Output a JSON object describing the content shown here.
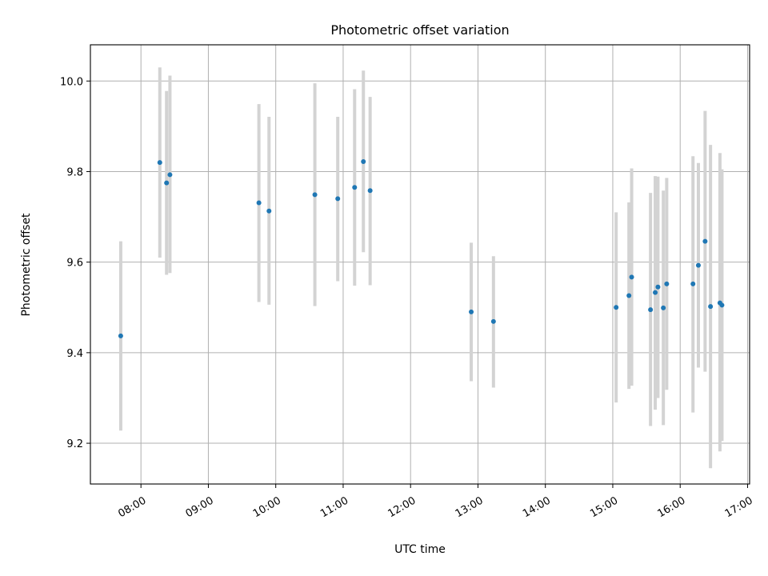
{
  "chart_data": {
    "type": "scatter",
    "title": "Photometric offset variation",
    "xlabel": "UTC time",
    "ylabel": "Photometric offset",
    "xlim_hours": [
      7.25,
      17.03
    ],
    "ylim": [
      9.11,
      10.08
    ],
    "grid": true,
    "x_ticks": [
      {
        "hour": 8,
        "label": "08:00"
      },
      {
        "hour": 9,
        "label": "09:00"
      },
      {
        "hour": 10,
        "label": "10:00"
      },
      {
        "hour": 11,
        "label": "11:00"
      },
      {
        "hour": 12,
        "label": "12:00"
      },
      {
        "hour": 13,
        "label": "13:00"
      },
      {
        "hour": 14,
        "label": "14:00"
      },
      {
        "hour": 15,
        "label": "15:00"
      },
      {
        "hour": 16,
        "label": "16:00"
      },
      {
        "hour": 17,
        "label": "17:00"
      }
    ],
    "y_ticks": [
      {
        "value": 9.2,
        "label": "9.2"
      },
      {
        "value": 9.4,
        "label": "9.4"
      },
      {
        "value": 9.6,
        "label": "9.6"
      },
      {
        "value": 9.8,
        "label": "9.8"
      },
      {
        "value": 10.0,
        "label": "10.0"
      }
    ],
    "point_color": "#1f77b4",
    "errorbar_color": "#d3d3d3",
    "points": [
      {
        "hour": 7.7,
        "y": 9.437,
        "low": 9.228,
        "high": 9.646
      },
      {
        "hour": 8.28,
        "y": 9.82,
        "low": 9.61,
        "high": 10.03
      },
      {
        "hour": 8.38,
        "y": 9.775,
        "low": 9.572,
        "high": 9.978
      },
      {
        "hour": 8.43,
        "y": 9.793,
        "low": 9.576,
        "high": 10.012
      },
      {
        "hour": 9.75,
        "y": 9.731,
        "low": 9.512,
        "high": 9.949
      },
      {
        "hour": 9.9,
        "y": 9.713,
        "low": 9.506,
        "high": 9.921
      },
      {
        "hour": 10.58,
        "y": 9.749,
        "low": 9.503,
        "high": 9.995
      },
      {
        "hour": 10.92,
        "y": 9.74,
        "low": 9.558,
        "high": 9.921
      },
      {
        "hour": 11.17,
        "y": 9.765,
        "low": 9.548,
        "high": 9.982
      },
      {
        "hour": 11.3,
        "y": 9.822,
        "low": 9.622,
        "high": 10.023
      },
      {
        "hour": 11.4,
        "y": 9.758,
        "low": 9.549,
        "high": 9.965
      },
      {
        "hour": 12.9,
        "y": 9.49,
        "low": 9.337,
        "high": 9.643
      },
      {
        "hour": 13.23,
        "y": 9.469,
        "low": 9.323,
        "high": 9.613
      },
      {
        "hour": 15.05,
        "y": 9.5,
        "low": 9.29,
        "high": 9.71
      },
      {
        "hour": 15.24,
        "y": 9.526,
        "low": 9.32,
        "high": 9.732
      },
      {
        "hour": 15.28,
        "y": 9.567,
        "low": 9.327,
        "high": 9.807
      },
      {
        "hour": 15.56,
        "y": 9.495,
        "low": 9.238,
        "high": 9.753
      },
      {
        "hour": 15.63,
        "y": 9.533,
        "low": 9.274,
        "high": 9.79
      },
      {
        "hour": 15.67,
        "y": 9.545,
        "low": 9.3,
        "high": 9.789
      },
      {
        "hour": 15.75,
        "y": 9.499,
        "low": 9.24,
        "high": 9.758
      },
      {
        "hour": 15.8,
        "y": 9.552,
        "low": 9.318,
        "high": 9.786
      },
      {
        "hour": 16.19,
        "y": 9.552,
        "low": 9.268,
        "high": 9.834
      },
      {
        "hour": 16.27,
        "y": 9.593,
        "low": 9.367,
        "high": 9.819
      },
      {
        "hour": 16.37,
        "y": 9.646,
        "low": 9.358,
        "high": 9.934
      },
      {
        "hour": 16.45,
        "y": 9.502,
        "low": 9.145,
        "high": 9.859
      },
      {
        "hour": 16.59,
        "y": 9.51,
        "low": 9.182,
        "high": 9.841
      },
      {
        "hour": 16.62,
        "y": 9.505,
        "low": 9.205,
        "high": 9.805
      }
    ]
  }
}
